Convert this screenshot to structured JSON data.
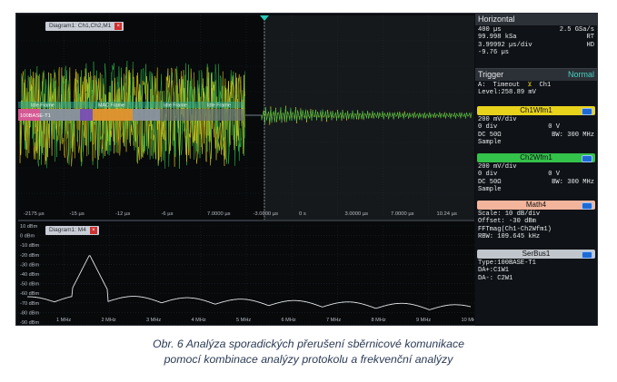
{
  "top_trace": {
    "tab": "Diagram1: Ch1,Ch2,M1",
    "x_ticks": [
      "-2175 µs",
      "-15 µs",
      "-12 µs",
      "-6 µs",
      "7.0000 µs",
      "-3.0000 µs",
      "0 s",
      "3.0000 µs",
      "7.0000 µs",
      "10.24 µs"
    ],
    "decode": [
      "Idle Frame",
      "Idle Frame",
      "Idle Frame",
      "100BASE-T1",
      "MAC Frame"
    ]
  },
  "spectrum": {
    "tab": "Diagram1: M4",
    "y_ticks": [
      "10 dBm",
      "0 dBm",
      "-10 dBm",
      "-20 dBm",
      "-30 dBm",
      "-40 dBm",
      "-50 dBm",
      "-60 dBm",
      "-70 dBm",
      "-80 dBm",
      "-90 dBm"
    ],
    "x_ticks": [
      "1 MHz",
      "2 MHz",
      "3 MHz",
      "4 MHz",
      "5 MHz",
      "6 MHz",
      "7 MHz",
      "8 MHz",
      "9 MHz",
      "10 MHz"
    ]
  },
  "horizontal": {
    "title": "Horizontal",
    "rows": [
      [
        "400 µs",
        "2.5 GSa/s"
      ],
      [
        "99.998 kSa",
        "RT"
      ],
      [
        "3.99992 µs/div",
        "HD"
      ],
      [
        "-9.76 µs",
        ""
      ]
    ]
  },
  "trigger": {
    "title": "Trigger",
    "mode": "Normal",
    "line1_a": "A:",
    "line1_b": "Timeout",
    "line1_c": "Ch1",
    "line2": "Level:258.89 mV"
  },
  "ch1": {
    "title": "Ch1Wfm1",
    "rows": [
      [
        "200 mV/div",
        ""
      ],
      [
        "0 div",
        "0 V"
      ],
      [
        "DC 50Ω",
        "BW: 300 MHz"
      ],
      [
        "Sample",
        ""
      ]
    ]
  },
  "ch2": {
    "title": "Ch2Wfm1",
    "rows": [
      [
        "200 mV/div",
        ""
      ],
      [
        "0 div",
        "0 V"
      ],
      [
        "DC 50Ω",
        "BW: 300 MHz"
      ],
      [
        "Sample",
        ""
      ]
    ]
  },
  "math": {
    "title": "Math4",
    "rows": [
      "Scale: 10 dB/div",
      "Offset: -30 dBm",
      "FFTmag(Ch1-Ch2Wfm1)",
      "RBW: 109.645 kHz"
    ]
  },
  "serbus": {
    "title": "SerBus1",
    "rows": [
      "Type:100BASE-T1",
      "DA+:C1W1",
      "DA-: C2W1"
    ]
  },
  "caption": {
    "line1": "Obr. 6  Analýza sporadických přerušení sběrnicové komunikace",
    "line2": "pomocí kombinace analýzy protokolu a frekvenční analýzy"
  },
  "colors": {
    "ch1": "#e8d21c",
    "ch2": "#33c24a",
    "math": "#f2b59c",
    "serbus": "#c0c6cc",
    "trigger_marker": "#27c9b8"
  }
}
